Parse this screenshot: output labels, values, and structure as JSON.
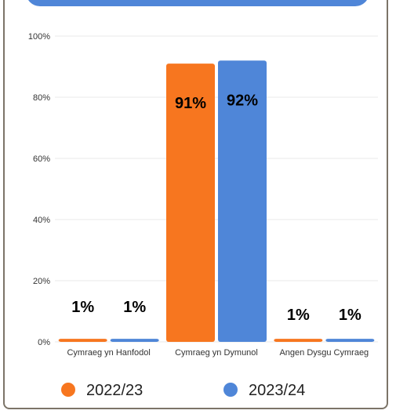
{
  "chart_data": {
    "type": "bar",
    "categories": [
      "Cymraeg yn Hanfodol",
      "Cymraeg yn Dymunol",
      "Angen Dysgu Cymraeg"
    ],
    "series": [
      {
        "name": "2022/23",
        "values": [
          1,
          91,
          1
        ],
        "labels": [
          "1%",
          "91%",
          "1%"
        ],
        "color": "#f7761f"
      },
      {
        "name": "2023/24",
        "values": [
          1,
          92,
          1
        ],
        "labels": [
          "1%",
          "92%",
          "1%"
        ],
        "color": "#4f86d8"
      }
    ],
    "y_ticks": [
      "0%",
      "20%",
      "40%",
      "60%",
      "80%",
      "100%"
    ],
    "ylim": [
      0,
      100
    ],
    "grid": true,
    "legend_position": "bottom",
    "title": "",
    "xlabel": "",
    "ylabel": ""
  },
  "theme": {
    "accent": "#4f86d8",
    "grid": "#e8e8e8",
    "text": "#000000",
    "axis_text": "#333333"
  }
}
